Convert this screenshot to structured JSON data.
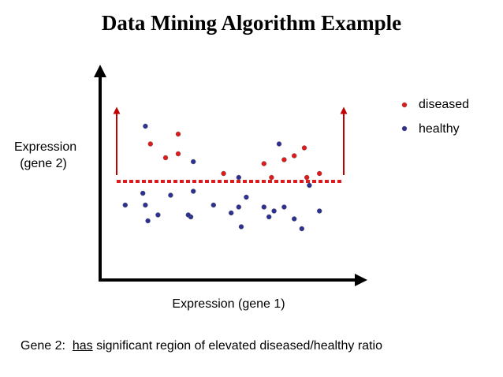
{
  "title": "Data Mining Algorithm Example",
  "y_axis_label_lines": [
    "Expression",
    "(gene 2)"
  ],
  "x_axis_label": "Expression (gene 1)",
  "legend": [
    {
      "label": "diseased",
      "color": "#e01b1b"
    },
    {
      "label": "healthy",
      "color": "#2e3192"
    }
  ],
  "caption": {
    "prefix": "Gene 2:  ",
    "underlined": "has",
    "suffix": " significant region of elevated diseased/healthy ratio"
  },
  "colors": {
    "axis": "#000000",
    "threshold_line": "#e01b1b",
    "arrows": "#c00000",
    "diseased": "#e01b1b",
    "healthy": "#2e3192"
  },
  "chart_data": {
    "type": "scatter",
    "xlim": [
      0,
      100
    ],
    "ylim": [
      0,
      100
    ],
    "threshold_y": 48,
    "series": [
      {
        "name": "diseased",
        "points": [
          [
            19,
            67
          ],
          [
            25,
            60
          ],
          [
            30,
            72
          ],
          [
            30,
            62
          ],
          [
            48,
            52
          ],
          [
            64,
            57
          ],
          [
            67,
            50
          ],
          [
            72,
            59
          ],
          [
            76,
            61
          ],
          [
            80,
            65
          ],
          [
            81,
            50
          ],
          [
            86,
            52
          ]
        ]
      },
      {
        "name": "healthy",
        "points": [
          [
            17,
            76
          ],
          [
            36,
            58
          ],
          [
            54,
            50
          ],
          [
            70,
            67
          ],
          [
            82,
            46
          ],
          [
            9,
            36
          ],
          [
            16,
            42
          ],
          [
            17,
            36
          ],
          [
            18,
            28
          ],
          [
            22,
            31
          ],
          [
            27,
            41
          ],
          [
            36,
            43
          ],
          [
            35,
            30
          ],
          [
            34,
            31
          ],
          [
            44,
            36
          ],
          [
            51,
            32
          ],
          [
            54,
            35
          ],
          [
            55,
            25
          ],
          [
            57,
            40
          ],
          [
            64,
            35
          ],
          [
            66,
            30
          ],
          [
            68,
            33
          ],
          [
            72,
            35
          ],
          [
            76,
            29
          ],
          [
            79,
            24
          ],
          [
            86,
            33
          ]
        ]
      }
    ]
  }
}
